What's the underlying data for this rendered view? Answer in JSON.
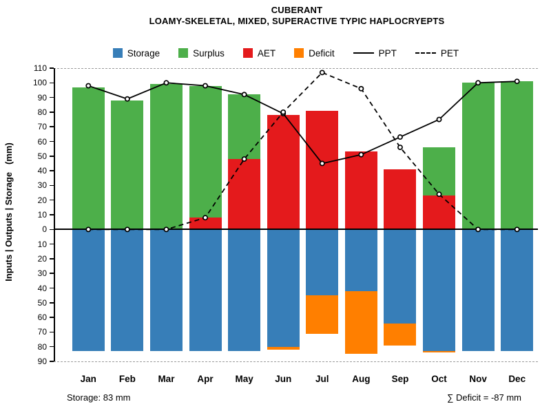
{
  "title": "CUBERANT",
  "subtitle": "LOAMY-SKELETAL, MIXED, SUPERACTIVE TYPIC HAPLOCRYEPTS",
  "y_axis_title": "Inputs | Outputs | Storage   (mm)",
  "footer": {
    "storage_note": "Storage: 83 mm",
    "deficit_note": "∑ Deficit = -87 mm"
  },
  "legend": [
    {
      "label": "Storage",
      "type": "box",
      "color": "#377EB8"
    },
    {
      "label": "Surplus",
      "type": "box",
      "color": "#4DAF4A"
    },
    {
      "label": "AET",
      "type": "box",
      "color": "#E41A1C"
    },
    {
      "label": "Deficit",
      "type": "box",
      "color": "#FF7F00"
    },
    {
      "label": "PPT",
      "type": "line-solid",
      "color": "#000000"
    },
    {
      "label": "PET",
      "type": "line-dashed",
      "color": "#000000"
    }
  ],
  "chart_data": {
    "type": "bar",
    "subtype": "monthly-water-balance-with-lines",
    "title": "CUBERANT",
    "subtitle": "LOAMY-SKELETAL, MIXED, SUPERACTIVE TYPIC HAPLOCRYEPTS",
    "xlabel": "",
    "ylabel": "Inputs | Outputs | Storage   (mm)",
    "grid": "dashed lines at +110 and -90 only, solid zero line",
    "legend_position": "top-center",
    "y_axis": {
      "top": 110,
      "bottom": -90,
      "tick_step": 10,
      "labels_absolute": true
    },
    "categories": [
      "Jan",
      "Feb",
      "Mar",
      "Apr",
      "May",
      "Jun",
      "Jul",
      "Aug",
      "Sep",
      "Oct",
      "Nov",
      "Dec"
    ],
    "series": [
      {
        "name": "AET",
        "kind": "bar",
        "axis": "above",
        "stack_order": 1,
        "color": "#E41A1C",
        "values": [
          0,
          0,
          0,
          8,
          48,
          78,
          81,
          53,
          41,
          23,
          0,
          0
        ]
      },
      {
        "name": "Surplus",
        "kind": "bar",
        "axis": "above",
        "stack_order": 2,
        "color": "#4DAF4A",
        "values": [
          97,
          88,
          99,
          90,
          44,
          0,
          0,
          0,
          0,
          33,
          100,
          101
        ]
      },
      {
        "name": "Storage",
        "kind": "bar",
        "axis": "below",
        "stack_order": 1,
        "color": "#377EB8",
        "values": [
          83,
          83,
          83,
          83,
          83,
          80,
          45,
          42,
          64,
          83,
          83,
          83
        ]
      },
      {
        "name": "Deficit",
        "kind": "bar",
        "axis": "below",
        "stack_order": 2,
        "color": "#FF7F00",
        "values": [
          0,
          0,
          0,
          0,
          0,
          -2,
          -26,
          -43,
          -15,
          -1,
          0,
          0
        ]
      },
      {
        "name": "PPT",
        "kind": "line",
        "style": "solid",
        "color": "#000000",
        "marker": "open-circle",
        "values": [
          98,
          89,
          100,
          98,
          92,
          79,
          45,
          51,
          63,
          75,
          100,
          101
        ]
      },
      {
        "name": "PET",
        "kind": "line",
        "style": "dashed",
        "color": "#000000",
        "marker": "open-circle",
        "values": [
          0,
          0,
          0,
          8,
          48,
          80,
          107,
          96,
          56,
          24,
          0,
          0
        ]
      }
    ],
    "annotations": {
      "storage_capacity_mm": 83,
      "total_deficit_mm": -87
    }
  }
}
